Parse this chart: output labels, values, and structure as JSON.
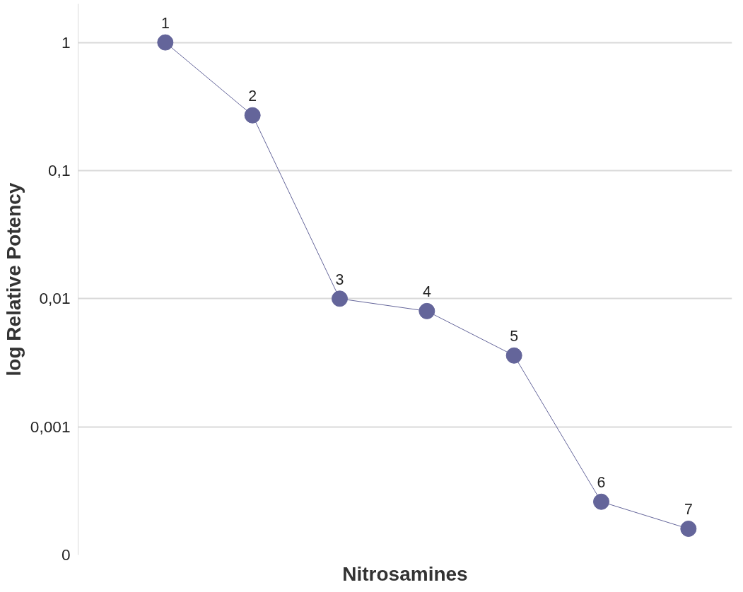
{
  "chart_data": {
    "type": "line",
    "xlabel": "Nitrosamines",
    "ylabel": "log Relative Potency",
    "categories": [
      null,
      null,
      null,
      null,
      null,
      null,
      null
    ],
    "series": [
      {
        "color": "#64659a",
        "values": [
          1,
          0.27,
          0.01,
          0.008,
          0.0036,
          0.00026,
          0.00016
        ]
      }
    ],
    "annotations": [
      {
        "text": "1",
        "y": 1
      },
      {
        "text": "2",
        "y": 0.27
      },
      {
        "text": "3",
        "y": 0.01
      },
      {
        "text": "4",
        "y": 0.008
      },
      {
        "text": "5",
        "y": 0.0036
      },
      {
        "text": "6",
        "y": 0.00026
      },
      {
        "text": "7",
        "y": 0.00016
      }
    ],
    "log": true,
    "ylim": [
      0.0001,
      2
    ],
    "yticks": [
      {
        "value": 0.0001,
        "label": "0"
      },
      {
        "value": 0.001,
        "label": "0,001"
      },
      {
        "value": 0.01,
        "label": "0,01"
      },
      {
        "value": 0.1,
        "label": "0,1"
      },
      {
        "value": 1,
        "label": "1"
      }
    ],
    "grid": "y",
    "marker": "circle",
    "line_style": "solid"
  }
}
